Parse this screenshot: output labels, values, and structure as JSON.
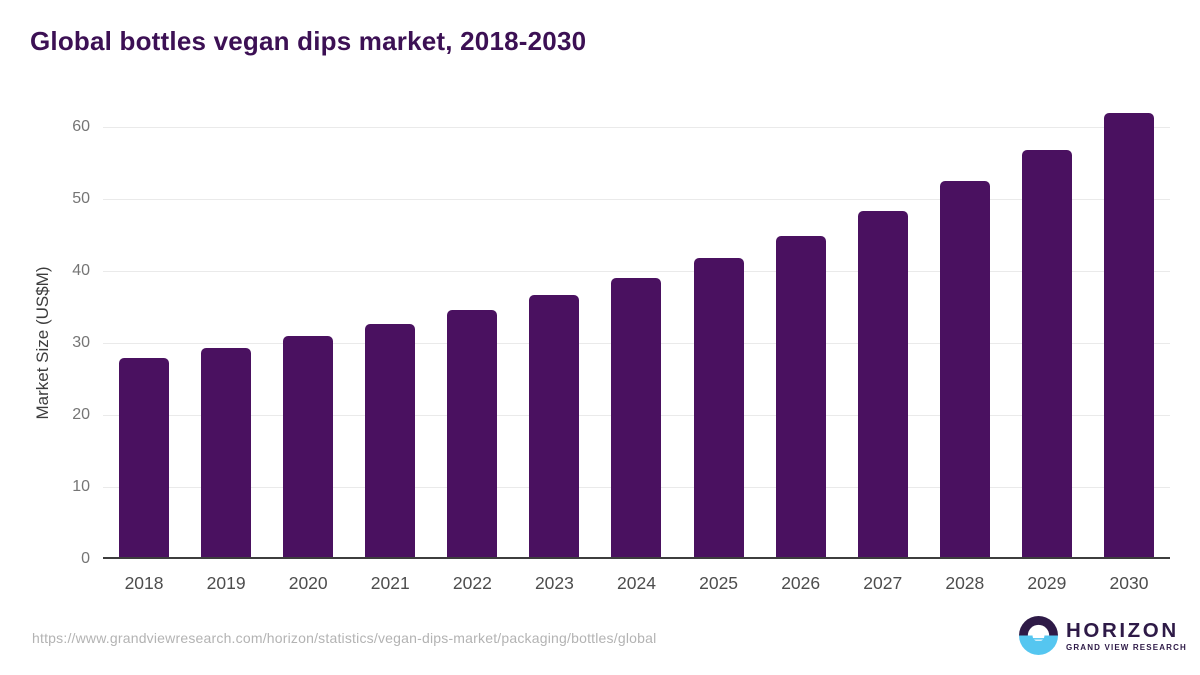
{
  "title": "Global bottles vegan dips market, 2018-2030",
  "source_url": "https://www.grandviewresearch.com/horizon/statistics/vegan-dips-market/packaging/bottles/global",
  "logo": {
    "name": "HORIZON",
    "subtitle": "GRAND VIEW RESEARCH"
  },
  "colors": {
    "bar": "#4a1160",
    "title_text": "#3c1054",
    "logo_dark": "#2e1a47",
    "logo_blue": "#55c6f0",
    "gridline": "#eaeaea",
    "axis_line": "#3d3d3d",
    "y_tick_text": "#757575",
    "x_tick_text": "#4d4d4d",
    "url_text": "#b3b3b3"
  },
  "chart_data": {
    "type": "bar",
    "title": "Global bottles vegan dips market, 2018-2030",
    "xlabel": "",
    "ylabel": "Market Size (US$M)",
    "categories": [
      "2018",
      "2019",
      "2020",
      "2021",
      "2022",
      "2023",
      "2024",
      "2025",
      "2026",
      "2027",
      "2028",
      "2029",
      "2030"
    ],
    "values": [
      27.7,
      29.2,
      30.8,
      32.5,
      34.4,
      36.6,
      39.0,
      41.7,
      44.8,
      48.3,
      52.4,
      56.8,
      62.0
    ],
    "ylim": [
      0,
      60
    ],
    "yticks": [
      0,
      10,
      20,
      30,
      40,
      50,
      60
    ],
    "grid": true,
    "legend": false,
    "bar_color": "#4a1160"
  }
}
